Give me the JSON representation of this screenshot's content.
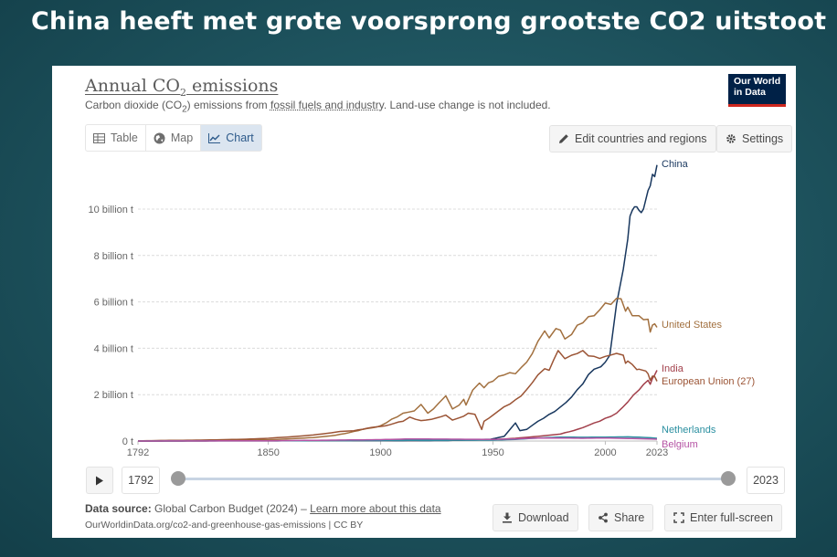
{
  "slide": {
    "title": "China heeft met grote voorsprong grootste CO2 uitstoot"
  },
  "card": {
    "title_main": "Annual CO",
    "title_sub": "2",
    "title_end": " emissions",
    "subtitle_a": "Carbon dioxide (CO",
    "subtitle_sub": "2",
    "subtitle_b": ") emissions from ",
    "subtitle_link": "fossil fuels and industry",
    "subtitle_c": ". Land-use change is not included.",
    "logo_line1": "Our World",
    "logo_line2": "in Data",
    "tabs": [
      {
        "label": "Table",
        "icon": "table-icon"
      },
      {
        "label": "Map",
        "icon": "globe-icon"
      },
      {
        "label": "Chart",
        "icon": "line-chart-icon"
      }
    ],
    "edit_label": "Edit countries and regions",
    "settings_label": "Settings",
    "timeline": {
      "start": "1792",
      "end": "2023"
    },
    "source_label": "Data source:",
    "source_text": " Global Carbon Budget (2024) – ",
    "source_link": "Learn more about this data",
    "url_text": "OurWorldinData.org/co2-and-greenhouse-gas-emissions | CC BY",
    "download_label": "Download",
    "share_label": "Share",
    "fullscreen_label": "Enter full-screen"
  },
  "chart_data": {
    "type": "line",
    "title": "Annual CO₂ emissions",
    "ylabel": "",
    "xlabel": "",
    "xlim": [
      1792,
      2023
    ],
    "ylim": [
      0,
      12
    ],
    "x_ticks": [
      "1792",
      "1850",
      "1900",
      "1950",
      "2000",
      "2023"
    ],
    "y_ticks": [
      {
        "v": 0,
        "label": "0 t"
      },
      {
        "v": 2,
        "label": "2 billion t"
      },
      {
        "v": 4,
        "label": "4 billion t"
      },
      {
        "v": 6,
        "label": "6 billion t"
      },
      {
        "v": 8,
        "label": "8 billion t"
      },
      {
        "v": 10,
        "label": "10 billion t"
      }
    ],
    "grid": true,
    "series": [
      {
        "name": "China",
        "color": "#18375e",
        "points": [
          [
            1792,
            0
          ],
          [
            1900,
            0.01
          ],
          [
            1930,
            0.02
          ],
          [
            1949,
            0.08
          ],
          [
            1955,
            0.2
          ],
          [
            1958,
            0.55
          ],
          [
            1960,
            0.78
          ],
          [
            1962,
            0.45
          ],
          [
            1965,
            0.5
          ],
          [
            1970,
            0.85
          ],
          [
            1975,
            1.15
          ],
          [
            1980,
            1.47
          ],
          [
            1985,
            1.9
          ],
          [
            1990,
            2.47
          ],
          [
            1995,
            3.1
          ],
          [
            1998,
            3.2
          ],
          [
            2000,
            3.4
          ],
          [
            2002,
            3.7
          ],
          [
            2005,
            5.9
          ],
          [
            2008,
            7.4
          ],
          [
            2010,
            8.7
          ],
          [
            2011,
            9.7
          ],
          [
            2012,
            9.95
          ],
          [
            2013,
            10.1
          ],
          [
            2014,
            10.1
          ],
          [
            2015,
            9.95
          ],
          [
            2016,
            9.85
          ],
          [
            2017,
            10.0
          ],
          [
            2018,
            10.4
          ],
          [
            2019,
            10.8
          ],
          [
            2020,
            11.0
          ],
          [
            2021,
            11.5
          ],
          [
            2022,
            11.4
          ],
          [
            2023,
            11.9
          ]
        ]
      },
      {
        "name": "United States",
        "color": "#a2703f",
        "points": [
          [
            1792,
            0
          ],
          [
            1850,
            0.05
          ],
          [
            1870,
            0.15
          ],
          [
            1880,
            0.25
          ],
          [
            1890,
            0.45
          ],
          [
            1900,
            0.66
          ],
          [
            1905,
            0.95
          ],
          [
            1910,
            1.2
          ],
          [
            1915,
            1.3
          ],
          [
            1918,
            1.58
          ],
          [
            1921,
            1.2
          ],
          [
            1926,
            1.65
          ],
          [
            1929,
            1.95
          ],
          [
            1932,
            1.38
          ],
          [
            1935,
            1.55
          ],
          [
            1937,
            1.8
          ],
          [
            1938,
            1.55
          ],
          [
            1941,
            2.2
          ],
          [
            1944,
            2.5
          ],
          [
            1946,
            2.3
          ],
          [
            1950,
            2.58
          ],
          [
            1955,
            2.85
          ],
          [
            1960,
            2.9
          ],
          [
            1965,
            3.4
          ],
          [
            1970,
            4.3
          ],
          [
            1973,
            4.75
          ],
          [
            1975,
            4.45
          ],
          [
            1978,
            4.85
          ],
          [
            1980,
            4.78
          ],
          [
            1982,
            4.4
          ],
          [
            1985,
            4.6
          ],
          [
            1990,
            5.1
          ],
          [
            1995,
            5.4
          ],
          [
            2000,
            5.95
          ],
          [
            2005,
            6.15
          ],
          [
            2007,
            6.13
          ],
          [
            2009,
            5.6
          ],
          [
            2010,
            5.77
          ],
          [
            2012,
            5.4
          ],
          [
            2015,
            5.4
          ],
          [
            2019,
            5.25
          ],
          [
            2020,
            4.7
          ],
          [
            2021,
            5.0
          ],
          [
            2022,
            5.05
          ],
          [
            2023,
            4.9
          ]
        ]
      },
      {
        "name": "India",
        "color": "#a2404b",
        "points": [
          [
            1792,
            0
          ],
          [
            1900,
            0.02
          ],
          [
            1930,
            0.03
          ],
          [
            1950,
            0.06
          ],
          [
            1960,
            0.12
          ],
          [
            1970,
            0.2
          ],
          [
            1980,
            0.3
          ],
          [
            1990,
            0.58
          ],
          [
            1995,
            0.78
          ],
          [
            2000,
            0.98
          ],
          [
            2005,
            1.2
          ],
          [
            2010,
            1.68
          ],
          [
            2015,
            2.2
          ],
          [
            2019,
            2.62
          ],
          [
            2020,
            2.45
          ],
          [
            2021,
            2.7
          ],
          [
            2022,
            2.85
          ],
          [
            2023,
            3.05
          ]
        ]
      },
      {
        "name": "European Union (27)",
        "color": "#9b5435",
        "points": [
          [
            1792,
            0.01
          ],
          [
            1800,
            0.02
          ],
          [
            1820,
            0.04
          ],
          [
            1840,
            0.08
          ],
          [
            1850,
            0.12
          ],
          [
            1860,
            0.18
          ],
          [
            1870,
            0.26
          ],
          [
            1880,
            0.38
          ],
          [
            1890,
            0.48
          ],
          [
            1900,
            0.63
          ],
          [
            1910,
            0.85
          ],
          [
            1913,
            1.03
          ],
          [
            1918,
            0.88
          ],
          [
            1920,
            0.9
          ],
          [
            1925,
            1.0
          ],
          [
            1929,
            1.12
          ],
          [
            1932,
            0.9
          ],
          [
            1935,
            1.0
          ],
          [
            1939,
            1.2
          ],
          [
            1942,
            1.15
          ],
          [
            1945,
            0.5
          ],
          [
            1946,
            0.85
          ],
          [
            1950,
            1.12
          ],
          [
            1955,
            1.48
          ],
          [
            1960,
            1.78
          ],
          [
            1965,
            2.22
          ],
          [
            1970,
            2.85
          ],
          [
            1973,
            3.12
          ],
          [
            1975,
            3.05
          ],
          [
            1979,
            3.9
          ],
          [
            1982,
            3.55
          ],
          [
            1985,
            3.7
          ],
          [
            1990,
            3.9
          ],
          [
            1995,
            3.65
          ],
          [
            2000,
            3.65
          ],
          [
            2005,
            3.78
          ],
          [
            2008,
            3.7
          ],
          [
            2009,
            3.35
          ],
          [
            2010,
            3.45
          ],
          [
            2012,
            3.3
          ],
          [
            2014,
            3.08
          ],
          [
            2015,
            3.1
          ],
          [
            2018,
            3.02
          ],
          [
            2019,
            2.9
          ],
          [
            2020,
            2.62
          ],
          [
            2021,
            2.8
          ],
          [
            2022,
            2.78
          ],
          [
            2023,
            2.58
          ]
        ]
      },
      {
        "name": "Netherlands",
        "color": "#2a8fa0",
        "points": [
          [
            1792,
            0
          ],
          [
            1900,
            0.02
          ],
          [
            1920,
            0.03
          ],
          [
            1950,
            0.04
          ],
          [
            1960,
            0.07
          ],
          [
            1970,
            0.13
          ],
          [
            1980,
            0.17
          ],
          [
            1990,
            0.16
          ],
          [
            2000,
            0.17
          ],
          [
            2010,
            0.18
          ],
          [
            2015,
            0.17
          ],
          [
            2020,
            0.14
          ],
          [
            2023,
            0.12
          ]
        ]
      },
      {
        "name": "Belgium",
        "color": "#b553a4",
        "points": [
          [
            1792,
            0
          ],
          [
            1850,
            0.01
          ],
          [
            1900,
            0.06
          ],
          [
            1913,
            0.09
          ],
          [
            1950,
            0.07
          ],
          [
            1960,
            0.09
          ],
          [
            1970,
            0.13
          ],
          [
            1980,
            0.13
          ],
          [
            1990,
            0.12
          ],
          [
            2000,
            0.13
          ],
          [
            2010,
            0.11
          ],
          [
            2020,
            0.09
          ],
          [
            2023,
            0.08
          ]
        ]
      }
    ]
  }
}
